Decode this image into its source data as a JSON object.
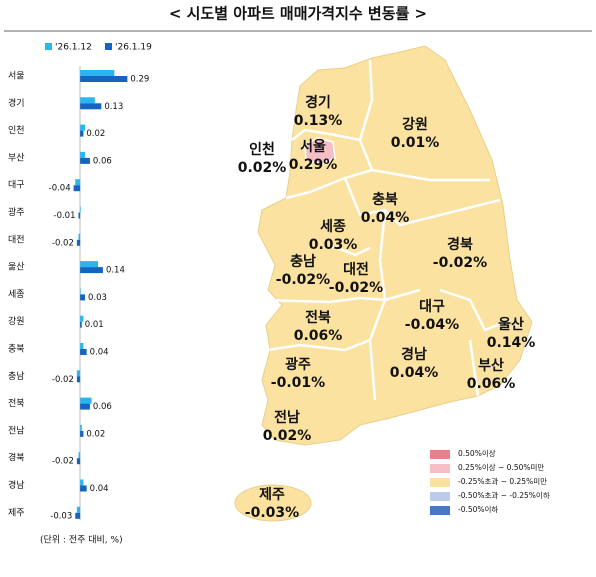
{
  "chart_data": {
    "type": "bar",
    "orientation": "horizontal",
    "title": "< 시도별 아파트 매매가격지수 변동률 >",
    "categories": [
      "서울",
      "경기",
      "인천",
      "부산",
      "대구",
      "광주",
      "대전",
      "울산",
      "세종",
      "강원",
      "충북",
      "충남",
      "전북",
      "전남",
      "경북",
      "경남",
      "제주"
    ],
    "series": [
      {
        "name": "'26.1.12",
        "color": "#29b5f0",
        "values": [
          0.21,
          0.09,
          0.03,
          0.03,
          -0.03,
          0.0,
          -0.01,
          0.11,
          0.0,
          0.02,
          0.02,
          -0.02,
          0.07,
          0.01,
          -0.01,
          0.02,
          -0.02
        ]
      },
      {
        "name": "'26.1.19",
        "color": "#1565c0",
        "values": [
          0.29,
          0.13,
          0.02,
          0.06,
          -0.04,
          -0.01,
          -0.02,
          0.14,
          0.03,
          0.01,
          0.04,
          -0.02,
          0.06,
          0.02,
          -0.02,
          0.04,
          -0.03
        ]
      }
    ],
    "value_labels_series": 1,
    "xlim": [
      -0.05,
      0.3
    ],
    "note": "(단위 : 전주 대비, %)"
  },
  "map": {
    "regions": [
      {
        "name": "경기",
        "value_label": "0.13%"
      },
      {
        "name": "강원",
        "value_label": "0.01%"
      },
      {
        "name": "인천",
        "value_label": "0.02%"
      },
      {
        "name": "서울",
        "value_label": "0.29%"
      },
      {
        "name": "충북",
        "value_label": "0.04%"
      },
      {
        "name": "세종",
        "value_label": "0.03%"
      },
      {
        "name": "충남",
        "value_label": "-0.02%"
      },
      {
        "name": "대전",
        "value_label": "-0.02%"
      },
      {
        "name": "경북",
        "value_label": "-0.02%"
      },
      {
        "name": "대구",
        "value_label": "-0.04%"
      },
      {
        "name": "울산",
        "value_label": "0.14%"
      },
      {
        "name": "전북",
        "value_label": "0.06%"
      },
      {
        "name": "경남",
        "value_label": "0.04%"
      },
      {
        "name": "부산",
        "value_label": "0.06%"
      },
      {
        "name": "광주",
        "value_label": "-0.01%"
      },
      {
        "name": "전남",
        "value_label": "0.02%"
      },
      {
        "name": "제주",
        "value_label": "-0.03%"
      }
    ],
    "legend": [
      {
        "label": "0.50%이상",
        "color": "#e8808a"
      },
      {
        "label": "0.25%이상 ~ 0.50%미만",
        "color": "#f5bfc5"
      },
      {
        "label": "-0.25%초과 ~ 0.25%미만",
        "color": "#fbe2a0"
      },
      {
        "label": "-0.50%초과 ~ -0.25%이하",
        "color": "#bccbea"
      },
      {
        "label": "-0.50%이하",
        "color": "#4677c8"
      }
    ]
  }
}
